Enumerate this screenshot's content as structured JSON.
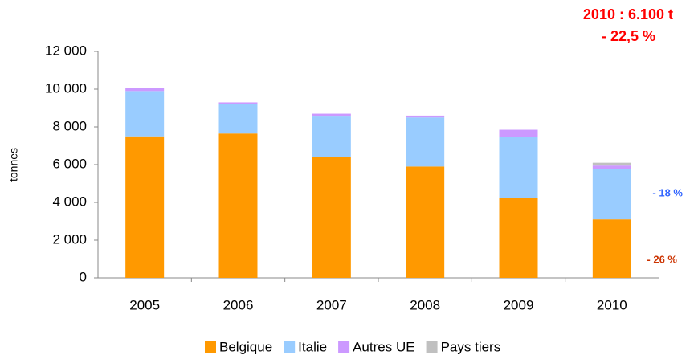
{
  "chart_data": {
    "type": "stacked_bar",
    "y_label": "tonnes",
    "categories": [
      "2005",
      "2006",
      "2007",
      "2008",
      "2009",
      "2010"
    ],
    "series": [
      {
        "name": "Belgique",
        "color": "#ff9900",
        "values": [
          7500,
          7650,
          6400,
          5900,
          4250,
          3100
        ]
      },
      {
        "name": "Italie",
        "color": "#99ccff",
        "values": [
          2400,
          1550,
          2150,
          2600,
          3200,
          2650
        ]
      },
      {
        "name": "Autres UE",
        "color": "#cc99ff",
        "values": [
          150,
          100,
          150,
          100,
          400,
          200
        ]
      },
      {
        "name": "Pays tiers",
        "color": "#c0c0c0",
        "values": [
          0,
          0,
          0,
          0,
          0,
          150
        ]
      }
    ],
    "ylim": [
      0,
      12000
    ],
    "yticks": [
      0,
      {
        "value": 2000,
        "label": "2 000"
      },
      {
        "value": 4000,
        "label": "4 000"
      },
      {
        "value": 6000,
        "label": "6 000"
      },
      {
        "value": 8000,
        "label": "8 000"
      },
      {
        "value": 10000,
        "label": "10 000"
      },
      {
        "value": 12000,
        "label": "12 000"
      }
    ],
    "grid": false,
    "annotations": [
      {
        "text": "2010 : 6.100 t",
        "color": "#ff0000"
      },
      {
        "text": "- 22,5 %",
        "color": "#ff0000"
      },
      {
        "text": "- 18 %",
        "color": "#3366ff"
      },
      {
        "text": "- 26 %",
        "color": "#cc3300"
      }
    ]
  }
}
